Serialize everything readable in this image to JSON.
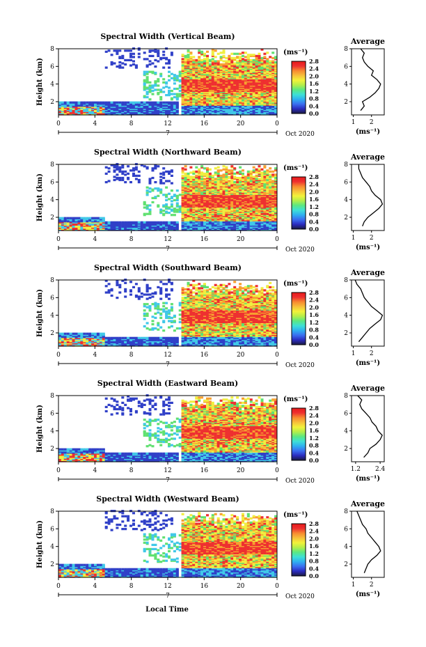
{
  "colors": {
    "colorbar_stops": [
      "#1a1a40",
      "#2b2bbf",
      "#3a6ef0",
      "#2fb0f0",
      "#3ee0d6",
      "#5be882",
      "#b4ee4a",
      "#f2f23a",
      "#f7c03a",
      "#f78a30",
      "#ee3030",
      "#e81a1a"
    ],
    "low": "#3040c8",
    "mid": "#40c8e8",
    "green": "#60e070",
    "yellow": "#f0ee40",
    "orange": "#f7a030",
    "red": "#ee3030"
  },
  "shared": {
    "unit_label": "(ms⁻¹)",
    "colorbar_ticks": [
      "0.0",
      "0.4",
      "0.8",
      "1.2",
      "1.6",
      "2.0",
      "2.4",
      "2.8"
    ],
    "colorbar_range": [
      0.0,
      2.8
    ],
    "date_label": "Oct 2020",
    "day_label": "7",
    "y_ticks": [
      "2",
      "4",
      "6",
      "8"
    ],
    "y_axis_label": "Height (km)",
    "x_ticks": [
      "0",
      "4",
      "8",
      "12",
      "16",
      "20",
      "0"
    ],
    "x_axis_label": "Local Time",
    "average_title": "Average"
  },
  "chart_data": [
    {
      "type": "heatmap",
      "title": "Spectral Width (Vertical Beam)",
      "x_range_hours": [
        0,
        24
      ],
      "y_range_km": [
        0.5,
        8
      ],
      "avg_xticks": [
        "1",
        "2"
      ],
      "avg_xlim": [
        0.9,
        2.7
      ],
      "avg_profile": {
        "height_km": [
          1.0,
          1.5,
          2.0,
          2.5,
          3.0,
          3.5,
          4.0,
          4.5,
          5.0,
          5.5,
          6.0,
          6.5,
          7.0,
          7.5,
          8.0
        ],
        "width": [
          1.4,
          1.6,
          1.5,
          1.9,
          2.2,
          2.4,
          2.5,
          2.3,
          2.0,
          2.1,
          1.8,
          1.6,
          1.5,
          1.6,
          1.4
        ]
      }
    },
    {
      "type": "heatmap",
      "title": "Spectral Width (Northward Beam)",
      "x_range_hours": [
        0,
        24
      ],
      "y_range_km": [
        0.5,
        8
      ],
      "avg_xticks": [
        "1",
        "2"
      ],
      "avg_xlim": [
        0.9,
        2.7
      ],
      "avg_profile": {
        "height_km": [
          1.0,
          1.5,
          2.0,
          2.5,
          3.0,
          3.5,
          4.0,
          4.5,
          5.0,
          5.5,
          6.0,
          6.5,
          7.0,
          7.5,
          8.0
        ],
        "width": [
          1.5,
          1.6,
          1.8,
          2.1,
          2.4,
          2.6,
          2.5,
          2.2,
          2.0,
          1.9,
          1.7,
          1.5,
          1.4,
          1.3,
          1.3
        ]
      }
    },
    {
      "type": "heatmap",
      "title": "Spectral Width (Southward Beam)",
      "x_range_hours": [
        0,
        24
      ],
      "y_range_km": [
        0.5,
        8
      ],
      "avg_xticks": [
        "1",
        "2"
      ],
      "avg_xlim": [
        0.9,
        2.7
      ],
      "avg_profile": {
        "height_km": [
          1.0,
          1.5,
          2.0,
          2.5,
          3.0,
          3.5,
          4.0,
          4.5,
          5.0,
          5.5,
          6.0,
          6.5,
          7.0,
          7.5,
          8.0
        ],
        "width": [
          1.3,
          1.5,
          1.7,
          1.9,
          2.2,
          2.5,
          2.6,
          2.3,
          2.0,
          1.8,
          1.6,
          1.5,
          1.4,
          1.2,
          1.1
        ]
      }
    },
    {
      "type": "heatmap",
      "title": "Spectral Width (Eastward Beam)",
      "x_range_hours": [
        0,
        24
      ],
      "y_range_km": [
        0.5,
        8
      ],
      "avg_xticks": [
        "1.2",
        "2.4"
      ],
      "avg_xlim": [
        1.0,
        2.6
      ],
      "avg_profile": {
        "height_km": [
          1.0,
          1.5,
          2.0,
          2.5,
          3.0,
          3.5,
          4.0,
          4.5,
          5.0,
          5.5,
          6.0,
          6.5,
          7.0,
          7.5,
          8.0
        ],
        "width": [
          1.6,
          1.8,
          1.9,
          2.2,
          2.4,
          2.5,
          2.3,
          2.2,
          2.0,
          1.9,
          1.7,
          1.5,
          1.4,
          1.5,
          1.3
        ]
      }
    },
    {
      "type": "heatmap",
      "title": "Spectral Width (Westward Beam)",
      "x_range_hours": [
        0,
        24
      ],
      "y_range_km": [
        0.5,
        8
      ],
      "avg_xticks": [
        "1",
        "2"
      ],
      "avg_xlim": [
        0.9,
        2.7
      ],
      "avg_profile": {
        "height_km": [
          1.0,
          1.5,
          2.0,
          2.5,
          3.0,
          3.5,
          4.0,
          4.5,
          5.0,
          5.5,
          6.0,
          6.5,
          7.0,
          7.5,
          8.0
        ],
        "width": [
          1.6,
          1.7,
          1.8,
          2.0,
          2.3,
          2.5,
          2.4,
          2.2,
          2.0,
          1.8,
          1.7,
          1.5,
          1.4,
          1.3,
          1.2
        ]
      }
    }
  ]
}
